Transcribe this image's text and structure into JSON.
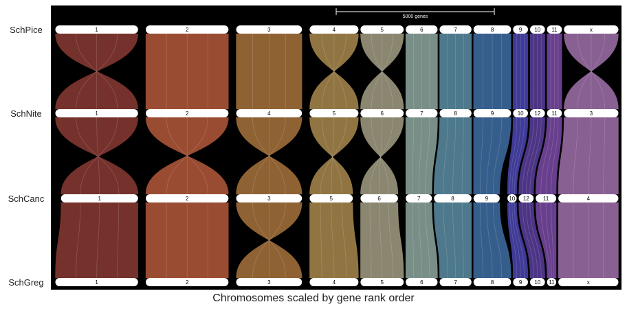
{
  "caption": "Chromosomes scaled by gene rank order",
  "scale_bar": {
    "label": "5000 genes"
  },
  "genomes": [
    {
      "name": "SchPice",
      "chromosomes": [
        {
          "label": "1",
          "start": 0.0,
          "end": 0.15
        },
        {
          "label": "2",
          "start": 0.16,
          "end": 0.31
        },
        {
          "label": "3",
          "start": 0.32,
          "end": 0.44
        },
        {
          "label": "4",
          "start": 0.45,
          "end": 0.54
        },
        {
          "label": "5",
          "start": 0.54,
          "end": 0.62
        },
        {
          "label": "6",
          "start": 0.62,
          "end": 0.68
        },
        {
          "label": "7",
          "start": 0.68,
          "end": 0.74
        },
        {
          "label": "8",
          "start": 0.74,
          "end": 0.81
        },
        {
          "label": "9",
          "start": 0.81,
          "end": 0.84
        },
        {
          "label": "10",
          "start": 0.84,
          "end": 0.87
        },
        {
          "label": "11",
          "start": 0.87,
          "end": 0.9
        },
        {
          "label": "x",
          "start": 0.9,
          "end": 1.0
        }
      ]
    },
    {
      "name": "SchNite",
      "chromosomes": [
        {
          "label": "1",
          "start": 0.0,
          "end": 0.15
        },
        {
          "label": "2",
          "start": 0.16,
          "end": 0.31
        },
        {
          "label": "4",
          "start": 0.32,
          "end": 0.44
        },
        {
          "label": "5",
          "start": 0.45,
          "end": 0.54
        },
        {
          "label": "6",
          "start": 0.54,
          "end": 0.62
        },
        {
          "label": "7",
          "start": 0.62,
          "end": 0.68
        },
        {
          "label": "8",
          "start": 0.68,
          "end": 0.74
        },
        {
          "label": "9",
          "start": 0.74,
          "end": 0.81
        },
        {
          "label": "10",
          "start": 0.81,
          "end": 0.84
        },
        {
          "label": "12",
          "start": 0.84,
          "end": 0.87
        },
        {
          "label": "11",
          "start": 0.87,
          "end": 0.9
        },
        {
          "label": "3",
          "start": 0.9,
          "end": 1.0
        }
      ]
    },
    {
      "name": "SchCanc",
      "chromosomes": [
        {
          "label": "1",
          "start": 0.01,
          "end": 0.15
        },
        {
          "label": "2",
          "start": 0.16,
          "end": 0.31
        },
        {
          "label": "3",
          "start": 0.32,
          "end": 0.44
        },
        {
          "label": "5",
          "start": 0.45,
          "end": 0.53
        },
        {
          "label": "6",
          "start": 0.54,
          "end": 0.61
        },
        {
          "label": "7",
          "start": 0.62,
          "end": 0.67
        },
        {
          "label": "8",
          "start": 0.67,
          "end": 0.74
        },
        {
          "label": "9",
          "start": 0.74,
          "end": 0.79
        },
        {
          "label": "10",
          "start": 0.8,
          "end": 0.82
        },
        {
          "label": "12",
          "start": 0.82,
          "end": 0.85
        },
        {
          "label": "11",
          "start": 0.85,
          "end": 0.89
        },
        {
          "label": "4",
          "start": 0.89,
          "end": 1.0
        }
      ]
    },
    {
      "name": "SchGreg",
      "chromosomes": [
        {
          "label": "1",
          "start": 0.0,
          "end": 0.15
        },
        {
          "label": "2",
          "start": 0.16,
          "end": 0.31
        },
        {
          "label": "3",
          "start": 0.32,
          "end": 0.44
        },
        {
          "label": "4",
          "start": 0.45,
          "end": 0.54
        },
        {
          "label": "5",
          "start": 0.54,
          "end": 0.62
        },
        {
          "label": "6",
          "start": 0.62,
          "end": 0.68
        },
        {
          "label": "7",
          "start": 0.68,
          "end": 0.74
        },
        {
          "label": "8",
          "start": 0.74,
          "end": 0.81
        },
        {
          "label": "9",
          "start": 0.81,
          "end": 0.84
        },
        {
          "label": "10",
          "start": 0.84,
          "end": 0.87
        },
        {
          "label": "11",
          "start": 0.87,
          "end": 0.89
        },
        {
          "label": "x",
          "start": 0.89,
          "end": 1.0
        }
      ]
    }
  ],
  "colors": {
    "background": "#000000",
    "ribbons": [
      "#8a3a34",
      "#b4593a",
      "#a8733c",
      "#a98a4f",
      "#a39d84",
      "#8fa7a0",
      "#5c8ea4",
      "#3f6fa4",
      "#4a45b0",
      "#5b3e9c",
      "#7a4aa6",
      "#a071aa"
    ]
  },
  "links": [
    {
      "from": 0,
      "to": 1,
      "pairs": [
        [
          0,
          0,
          "twist"
        ],
        [
          1,
          1,
          "straight"
        ],
        [
          2,
          2,
          "straight"
        ],
        [
          3,
          3,
          "twist"
        ],
        [
          4,
          4,
          "twist"
        ],
        [
          5,
          5,
          "straight"
        ],
        [
          6,
          6,
          "straight"
        ],
        [
          7,
          7,
          "straight"
        ],
        [
          8,
          8,
          "straight"
        ],
        [
          9,
          9,
          "straight"
        ],
        [
          10,
          10,
          "straight"
        ],
        [
          11,
          11,
          "twist"
        ]
      ]
    },
    {
      "from": 1,
      "to": 2,
      "pairs": [
        [
          0,
          0,
          "twist"
        ],
        [
          1,
          1,
          "twist"
        ],
        [
          2,
          2,
          "twist"
        ],
        [
          3,
          3,
          "twist"
        ],
        [
          4,
          4,
          "twist"
        ],
        [
          5,
          5,
          "straight"
        ],
        [
          6,
          6,
          "straight"
        ],
        [
          7,
          7,
          "straight"
        ],
        [
          8,
          8,
          "straight"
        ],
        [
          9,
          9,
          "straight"
        ],
        [
          10,
          10,
          "straight"
        ],
        [
          11,
          11,
          "straight"
        ]
      ]
    },
    {
      "from": 2,
      "to": 3,
      "pairs": [
        [
          0,
          0,
          "straight"
        ],
        [
          1,
          1,
          "straight"
        ],
        [
          2,
          2,
          "twist"
        ],
        [
          3,
          3,
          "straight"
        ],
        [
          4,
          4,
          "straight"
        ],
        [
          5,
          5,
          "straight"
        ],
        [
          6,
          6,
          "straight"
        ],
        [
          7,
          7,
          "straight"
        ],
        [
          8,
          8,
          "straight"
        ],
        [
          9,
          9,
          "straight"
        ],
        [
          10,
          10,
          "straight"
        ],
        [
          11,
          11,
          "straight"
        ]
      ]
    }
  ]
}
